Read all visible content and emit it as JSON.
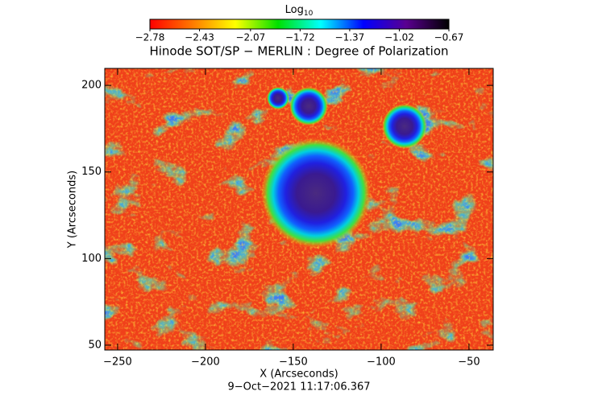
{
  "chart_data": {
    "type": "heatmap",
    "title": "Hinode SOT/SP − MERLIN : Degree of Polarization",
    "x_label": "X (Arcseconds)",
    "y_label": "Y (Arcseconds)",
    "footer": "9−Oct−2021 11:17:06.367",
    "xlim": [
      -257.3,
      -36.2
    ],
    "ylim": [
      47.2,
      209.8
    ],
    "xticks": [
      {
        "value": -250,
        "label": "−250"
      },
      {
        "value": -200,
        "label": "−200"
      },
      {
        "value": -150,
        "label": "−150"
      },
      {
        "value": -100,
        "label": "−100"
      },
      {
        "value": -50,
        "label": "−50"
      }
    ],
    "yticks": [
      50,
      100,
      150,
      200
    ],
    "colorbar": {
      "label": "Log",
      "label_sub": "10",
      "lim": [
        -2.78,
        -0.67
      ],
      "ticks": [
        {
          "value": -2.78,
          "label": "−2.78"
        },
        {
          "value": -2.43,
          "label": "−2.43"
        },
        {
          "value": -2.07,
          "label": "−2.07"
        },
        {
          "value": -1.72,
          "label": "−1.72"
        },
        {
          "value": -1.37,
          "label": "−1.37"
        },
        {
          "value": -1.02,
          "label": "−1.02"
        },
        {
          "value": -0.67,
          "label": "−0.67"
        }
      ],
      "colors": [
        "#ff0000",
        "#ff7a00",
        "#ffff00",
        "#00e000",
        "#00ffff",
        "#0000ff",
        "#5a0090",
        "#000000"
      ]
    }
  }
}
